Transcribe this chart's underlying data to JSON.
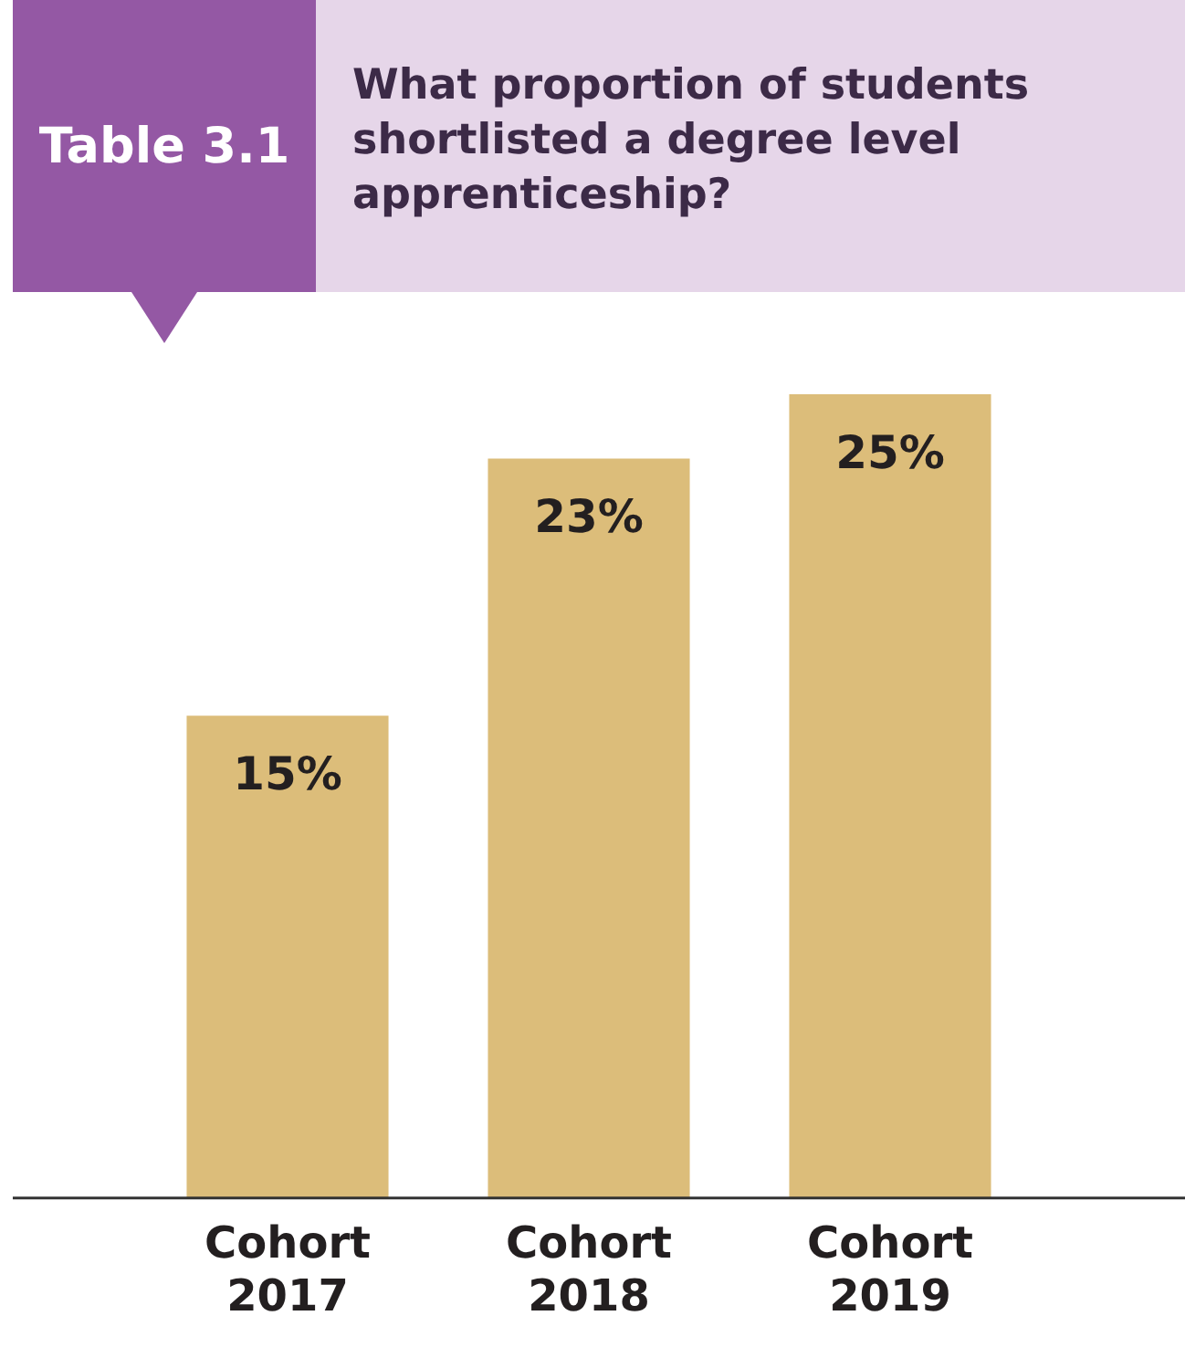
{
  "chart_data": {
    "type": "bar",
    "title": "What proportion of students shortlisted a degree level apprenticeship?",
    "annotations": [
      "Table 3.1"
    ],
    "categories": [
      "Cohort 2017",
      "Cohort 2018",
      "Cohort 2019"
    ],
    "values": [
      15,
      23,
      25
    ],
    "color": "#dcbd7a",
    "relative": false,
    "data_labels": true,
    "value_labels": [
      "15%",
      "23%",
      "25%"
    ],
    "grid": false,
    "legend": false
  }
}
